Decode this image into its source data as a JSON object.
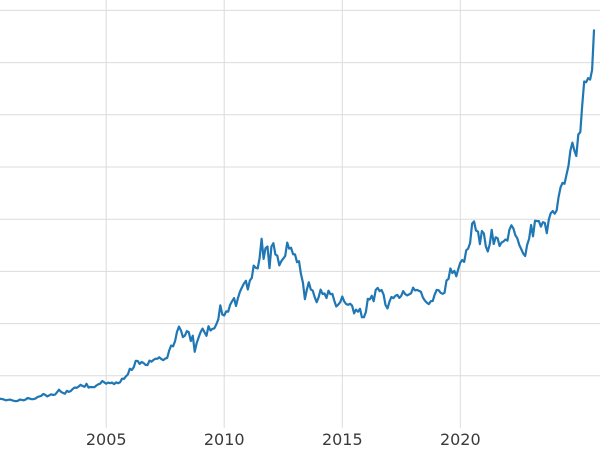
{
  "colors": {
    "background": "#ffffff",
    "line": "#1f77b4",
    "grid": "#dcdcdc",
    "tick_label": "#3a3a3a"
  },
  "chart_data": {
    "type": "line",
    "title": "",
    "xlabel": "",
    "ylabel": "",
    "legend": "none",
    "grid": true,
    "x_ticks": [
      2005,
      2010,
      2015,
      2020
    ],
    "x_tick_labels": [
      "2005",
      "2010",
      "2015",
      "2020"
    ],
    "xlim": [
      2000.5,
      2025.92
    ],
    "ylim": [
      0,
      4100
    ],
    "y_grid_step": 500,
    "sampling": "monthly",
    "x_data_start": 2000.5,
    "values": [
      281,
      277,
      273,
      265,
      269,
      272,
      266,
      261,
      257,
      260,
      272,
      270,
      265,
      272,
      287,
      283,
      276,
      277,
      282,
      296,
      302,
      308,
      326,
      318,
      303,
      312,
      323,
      316,
      320,
      342,
      367,
      347,
      336,
      328,
      355,
      346,
      354,
      375,
      388,
      384,
      398,
      414,
      402,
      395,
      423,
      388,
      393,
      392,
      391,
      407,
      419,
      425,
      450,
      438,
      424,
      435,
      429,
      435,
      421,
      437,
      429,
      437,
      472,
      470,
      494,
      513,
      568,
      556,
      582,
      644,
      642,
      613,
      632,
      623,
      604,
      603,
      646,
      636,
      651,
      664,
      663,
      677,
      661,
      650,
      665,
      672,
      742,
      789,
      783,
      833,
      922,
      971,
      933,
      871,
      885,
      928,
      918,
      833,
      884,
      730,
      814,
      869,
      919,
      952,
      916,
      883,
      975,
      934,
      949,
      955,
      995,
      1040,
      1175,
      1087,
      1078,
      1118,
      1115,
      1179,
      1215,
      1244,
      1169,
      1246,
      1307,
      1346,
      1383,
      1410,
      1327,
      1411,
      1438,
      1556,
      1536,
      1529,
      1628,
      1813,
      1620,
      1722,
      1739,
      1531,
      1737,
      1770,
      1662,
      1651,
      1558,
      1598,
      1622,
      1648,
      1776,
      1719,
      1726,
      1664,
      1664,
      1588,
      1598,
      1477,
      1394,
      1234,
      1323,
      1396,
      1327,
      1316,
      1253,
      1205,
      1251,
      1326,
      1284,
      1288,
      1245,
      1315,
      1282,
      1285,
      1216,
      1164,
      1182,
      1206,
      1260,
      1213,
      1187,
      1180,
      1191,
      1172,
      1098,
      1134,
      1114,
      1142,
      1061,
      1060,
      1111,
      1238,
      1232,
      1266,
      1215,
      1322,
      1342,
      1311,
      1322,
      1277,
      1178,
      1146,
      1211,
      1255,
      1244,
      1266,
      1275,
      1246,
      1267,
      1311,
      1283,
      1270,
      1280,
      1291,
      1345,
      1318,
      1323,
      1313,
      1305,
      1250,
      1220,
      1201,
      1187,
      1215,
      1217,
      1279,
      1323,
      1320,
      1295,
      1286,
      1295,
      1413,
      1428,
      1528,
      1485,
      1505,
      1454,
      1523,
      1584,
      1609,
      1591,
      1702,
      1718,
      1772,
      1957,
      1979,
      1892,
      1881,
      1762,
      1887,
      1863,
      1742,
      1691,
      1763,
      1899,
      1763,
      1827,
      1818,
      1743,
      1777,
      1788,
      1806,
      1795,
      1900,
      1942,
      1911,
      1848,
      1817,
      1753,
      1715,
      1671,
      1648,
      1753,
      1812,
      1945,
      1836,
      1986,
      1982,
      1982,
      1929,
      1971,
      1965,
      1866,
      1997,
      2057,
      2078,
      2053,
      2083,
      2214,
      2307,
      2348,
      2339,
      2426,
      2513,
      2658,
      2734,
      2657,
      2606,
      2812,
      2835,
      3089,
      3319,
      3313,
      3352,
      3337,
      3429,
      3810
    ]
  }
}
